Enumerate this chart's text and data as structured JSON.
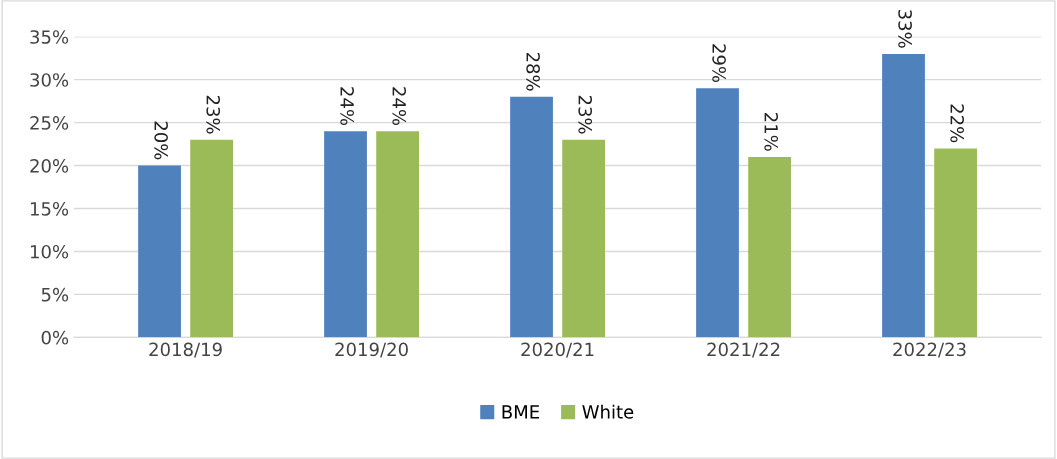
{
  "chart_data": {
    "type": "bar",
    "categories": [
      "2018/19",
      "2019/20",
      "2020/21",
      "2021/22",
      "2022/23"
    ],
    "series": [
      {
        "name": "BME",
        "color": "#4f81bd",
        "values": [
          20,
          24,
          28,
          29,
          33
        ],
        "value_labels": [
          "20%",
          "24%",
          "28%",
          "29%",
          "33%"
        ]
      },
      {
        "name": "White",
        "color": "#9bbb59",
        "values": [
          23,
          24,
          23,
          21,
          22
        ],
        "value_labels": [
          "23%",
          "24%",
          "23%",
          "21%",
          "22%"
        ]
      }
    ],
    "ylim": [
      0,
      35
    ],
    "yticks": [
      {
        "value": 0,
        "label": "0%"
      },
      {
        "value": 5,
        "label": "5%"
      },
      {
        "value": 10,
        "label": "10%"
      },
      {
        "value": 15,
        "label": "15%"
      },
      {
        "value": 20,
        "label": "20%"
      },
      {
        "value": 25,
        "label": "25%"
      },
      {
        "value": 30,
        "label": "30%"
      },
      {
        "value": 35,
        "label": "35%"
      }
    ],
    "grid": "y",
    "legend": "bottom"
  }
}
